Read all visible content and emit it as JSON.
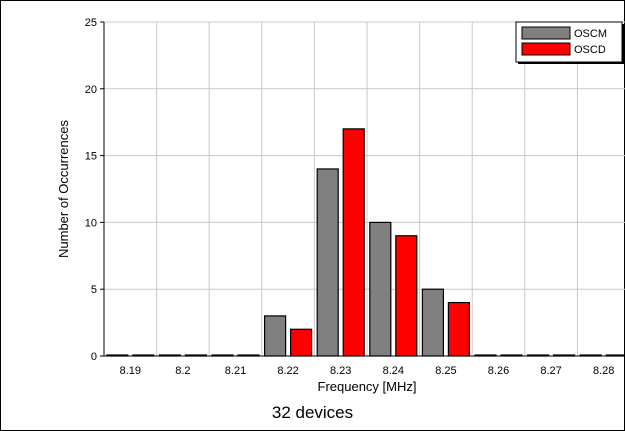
{
  "chart_data": {
    "type": "bar",
    "categories": [
      "8.19",
      "8.2",
      "8.21",
      "8.22",
      "8.23",
      "8.24",
      "8.25",
      "8.26",
      "8.27",
      "8.28"
    ],
    "series": [
      {
        "name": "OSCM",
        "values": [
          0,
          0,
          0,
          3,
          14,
          10,
          5,
          0,
          0,
          0
        ],
        "color": "#808080"
      },
      {
        "name": "OSCD",
        "values": [
          0,
          0,
          0,
          2,
          17,
          9,
          4,
          0,
          0,
          0
        ],
        "color": "#ff0000"
      }
    ],
    "xlabel": "Frequency [MHz]",
    "ylabel": "Number of Occurrences",
    "ylim": [
      0,
      25
    ],
    "yticks": [
      0,
      5,
      10,
      15,
      20,
      25
    ],
    "grid": true,
    "legend": "top-right",
    "caption": "32 devices"
  }
}
